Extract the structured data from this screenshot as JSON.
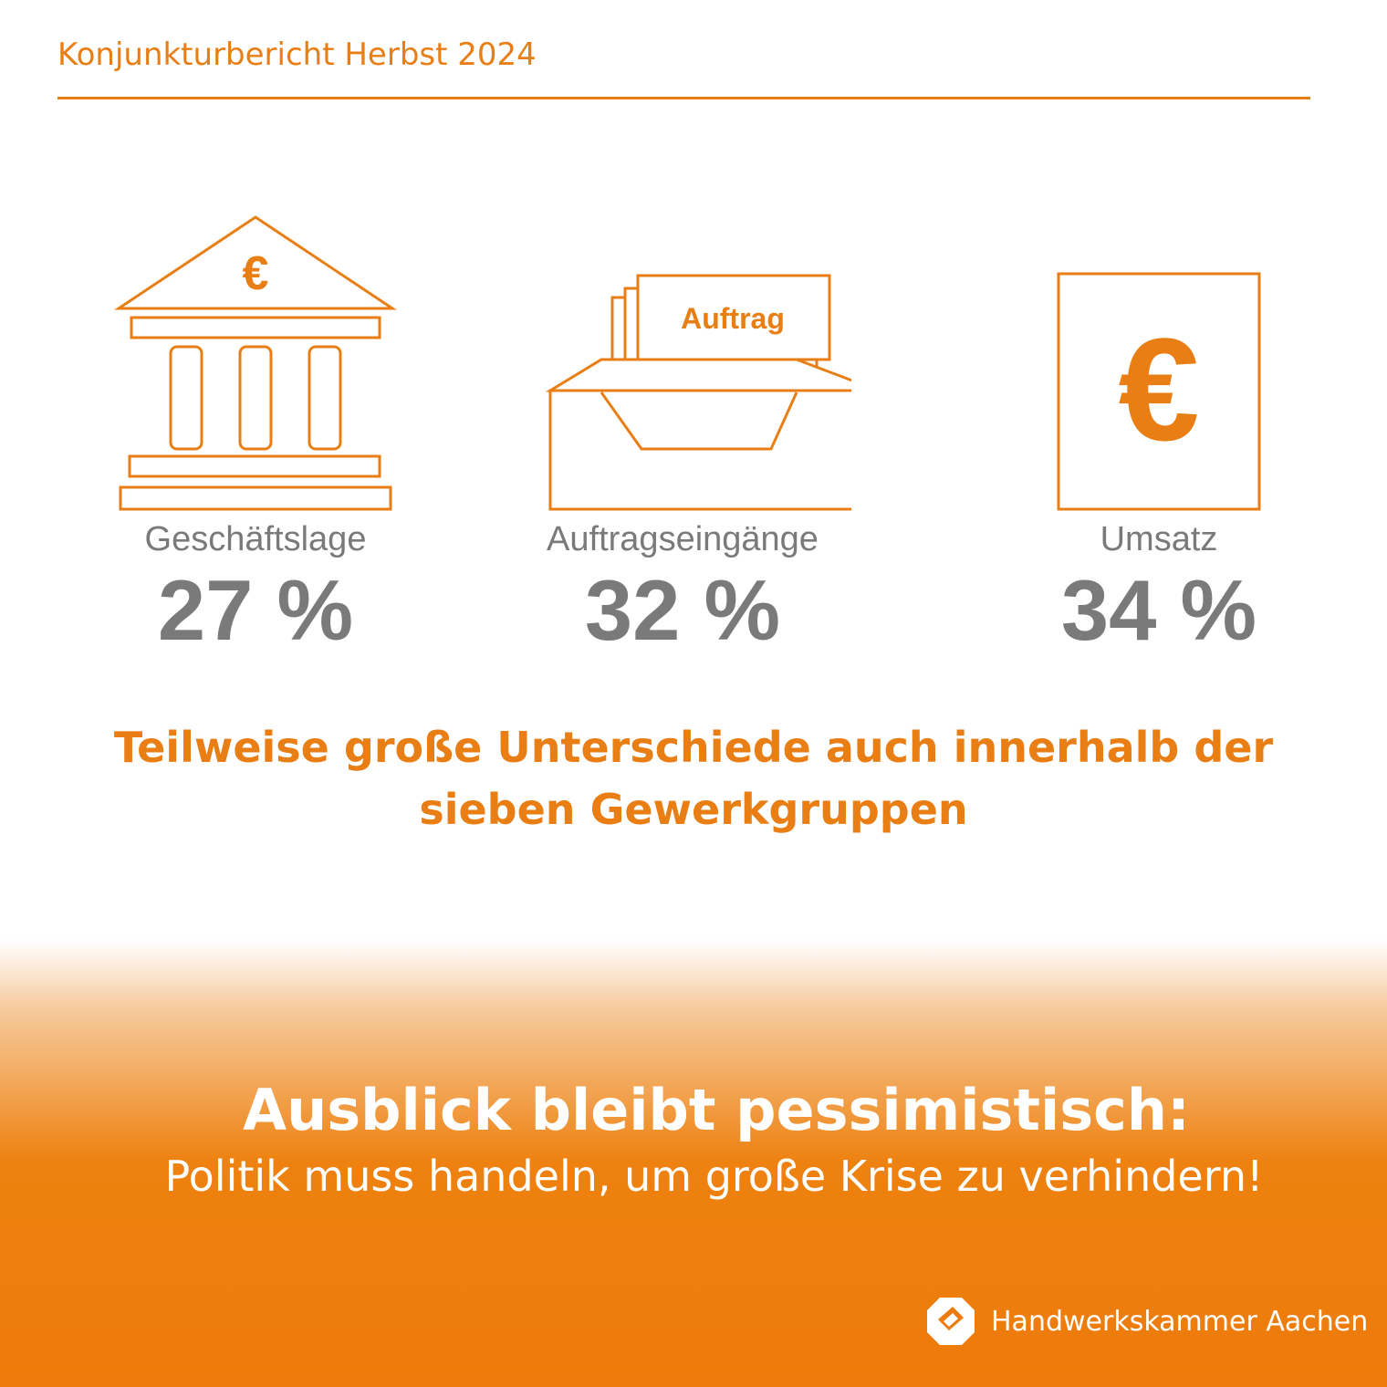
{
  "header": {
    "title": "Konjunkturbericht Herbst 2024"
  },
  "stats": [
    {
      "label": "Geschäftslage",
      "value": "27 %",
      "icon": "bank-euro-icon"
    },
    {
      "label": "Auftragseingänge",
      "value": "32 %",
      "icon": "order-tray-icon",
      "icon_text": "Auftrag"
    },
    {
      "label": "Umsatz",
      "value": "34 %",
      "icon": "euro-box-icon"
    }
  ],
  "subhead": {
    "line1": "Teilweise große Unterschiede auch innerhalb der",
    "line2": "sieben Gewerkgruppen"
  },
  "footer": {
    "title": "Ausblick bleibt pessimistisch:",
    "subtitle": "Politik muss handeln, um große Krise zu verhindern!",
    "brand": "Handwerkskammer Aachen"
  },
  "colors": {
    "accent": "#E87E14",
    "text_gray": "#7A7A7A",
    "footer_orange": "#ED7B0B",
    "white": "#FFFFFF"
  }
}
